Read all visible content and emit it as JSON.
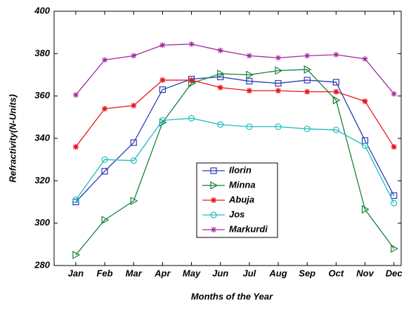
{
  "chart_data": {
    "type": "line",
    "x_label": "Months of the Year",
    "y_label": "Refractivity(N-Units)",
    "categories": [
      "Jan",
      "Feb",
      "Mar",
      "Apr",
      "May",
      "Jun",
      "Jul",
      "Aug",
      "Sep",
      "Oct",
      "Nov",
      "Dec"
    ],
    "ylim": [
      280,
      400
    ],
    "yticks": [
      280,
      300,
      320,
      340,
      360,
      380,
      400
    ],
    "series": [
      {
        "name": "Ilorin",
        "color": "#2b3bb5",
        "marker": "square",
        "values": [
          310,
          324.5,
          338,
          363,
          368,
          369,
          367,
          366,
          367.5,
          366.5,
          339,
          313
        ]
      },
      {
        "name": "Minna",
        "color": "#16813a",
        "marker": "triangle-right",
        "values": [
          285,
          301.5,
          310.5,
          347.5,
          366,
          370.5,
          370,
          372,
          372.5,
          358,
          306.5,
          288
        ]
      },
      {
        "name": "Abuja",
        "color": "#e8161c",
        "marker": "plus",
        "values": [
          336,
          354,
          355.5,
          367.5,
          367.5,
          364,
          362.5,
          362.5,
          362,
          362,
          357.5,
          336
        ]
      },
      {
        "name": "Jos",
        "color": "#1fbcc0",
        "marker": "circle",
        "values": [
          311,
          330,
          329.5,
          348.5,
          349.5,
          346.5,
          345.5,
          345.5,
          344.5,
          344,
          336.5,
          309.5
        ]
      },
      {
        "name": "Markurdi",
        "color": "#a3269f",
        "marker": "star",
        "values": [
          360.5,
          377,
          379,
          384,
          384.5,
          381.5,
          379,
          378,
          379,
          379.5,
          377.5,
          361
        ]
      }
    ]
  }
}
